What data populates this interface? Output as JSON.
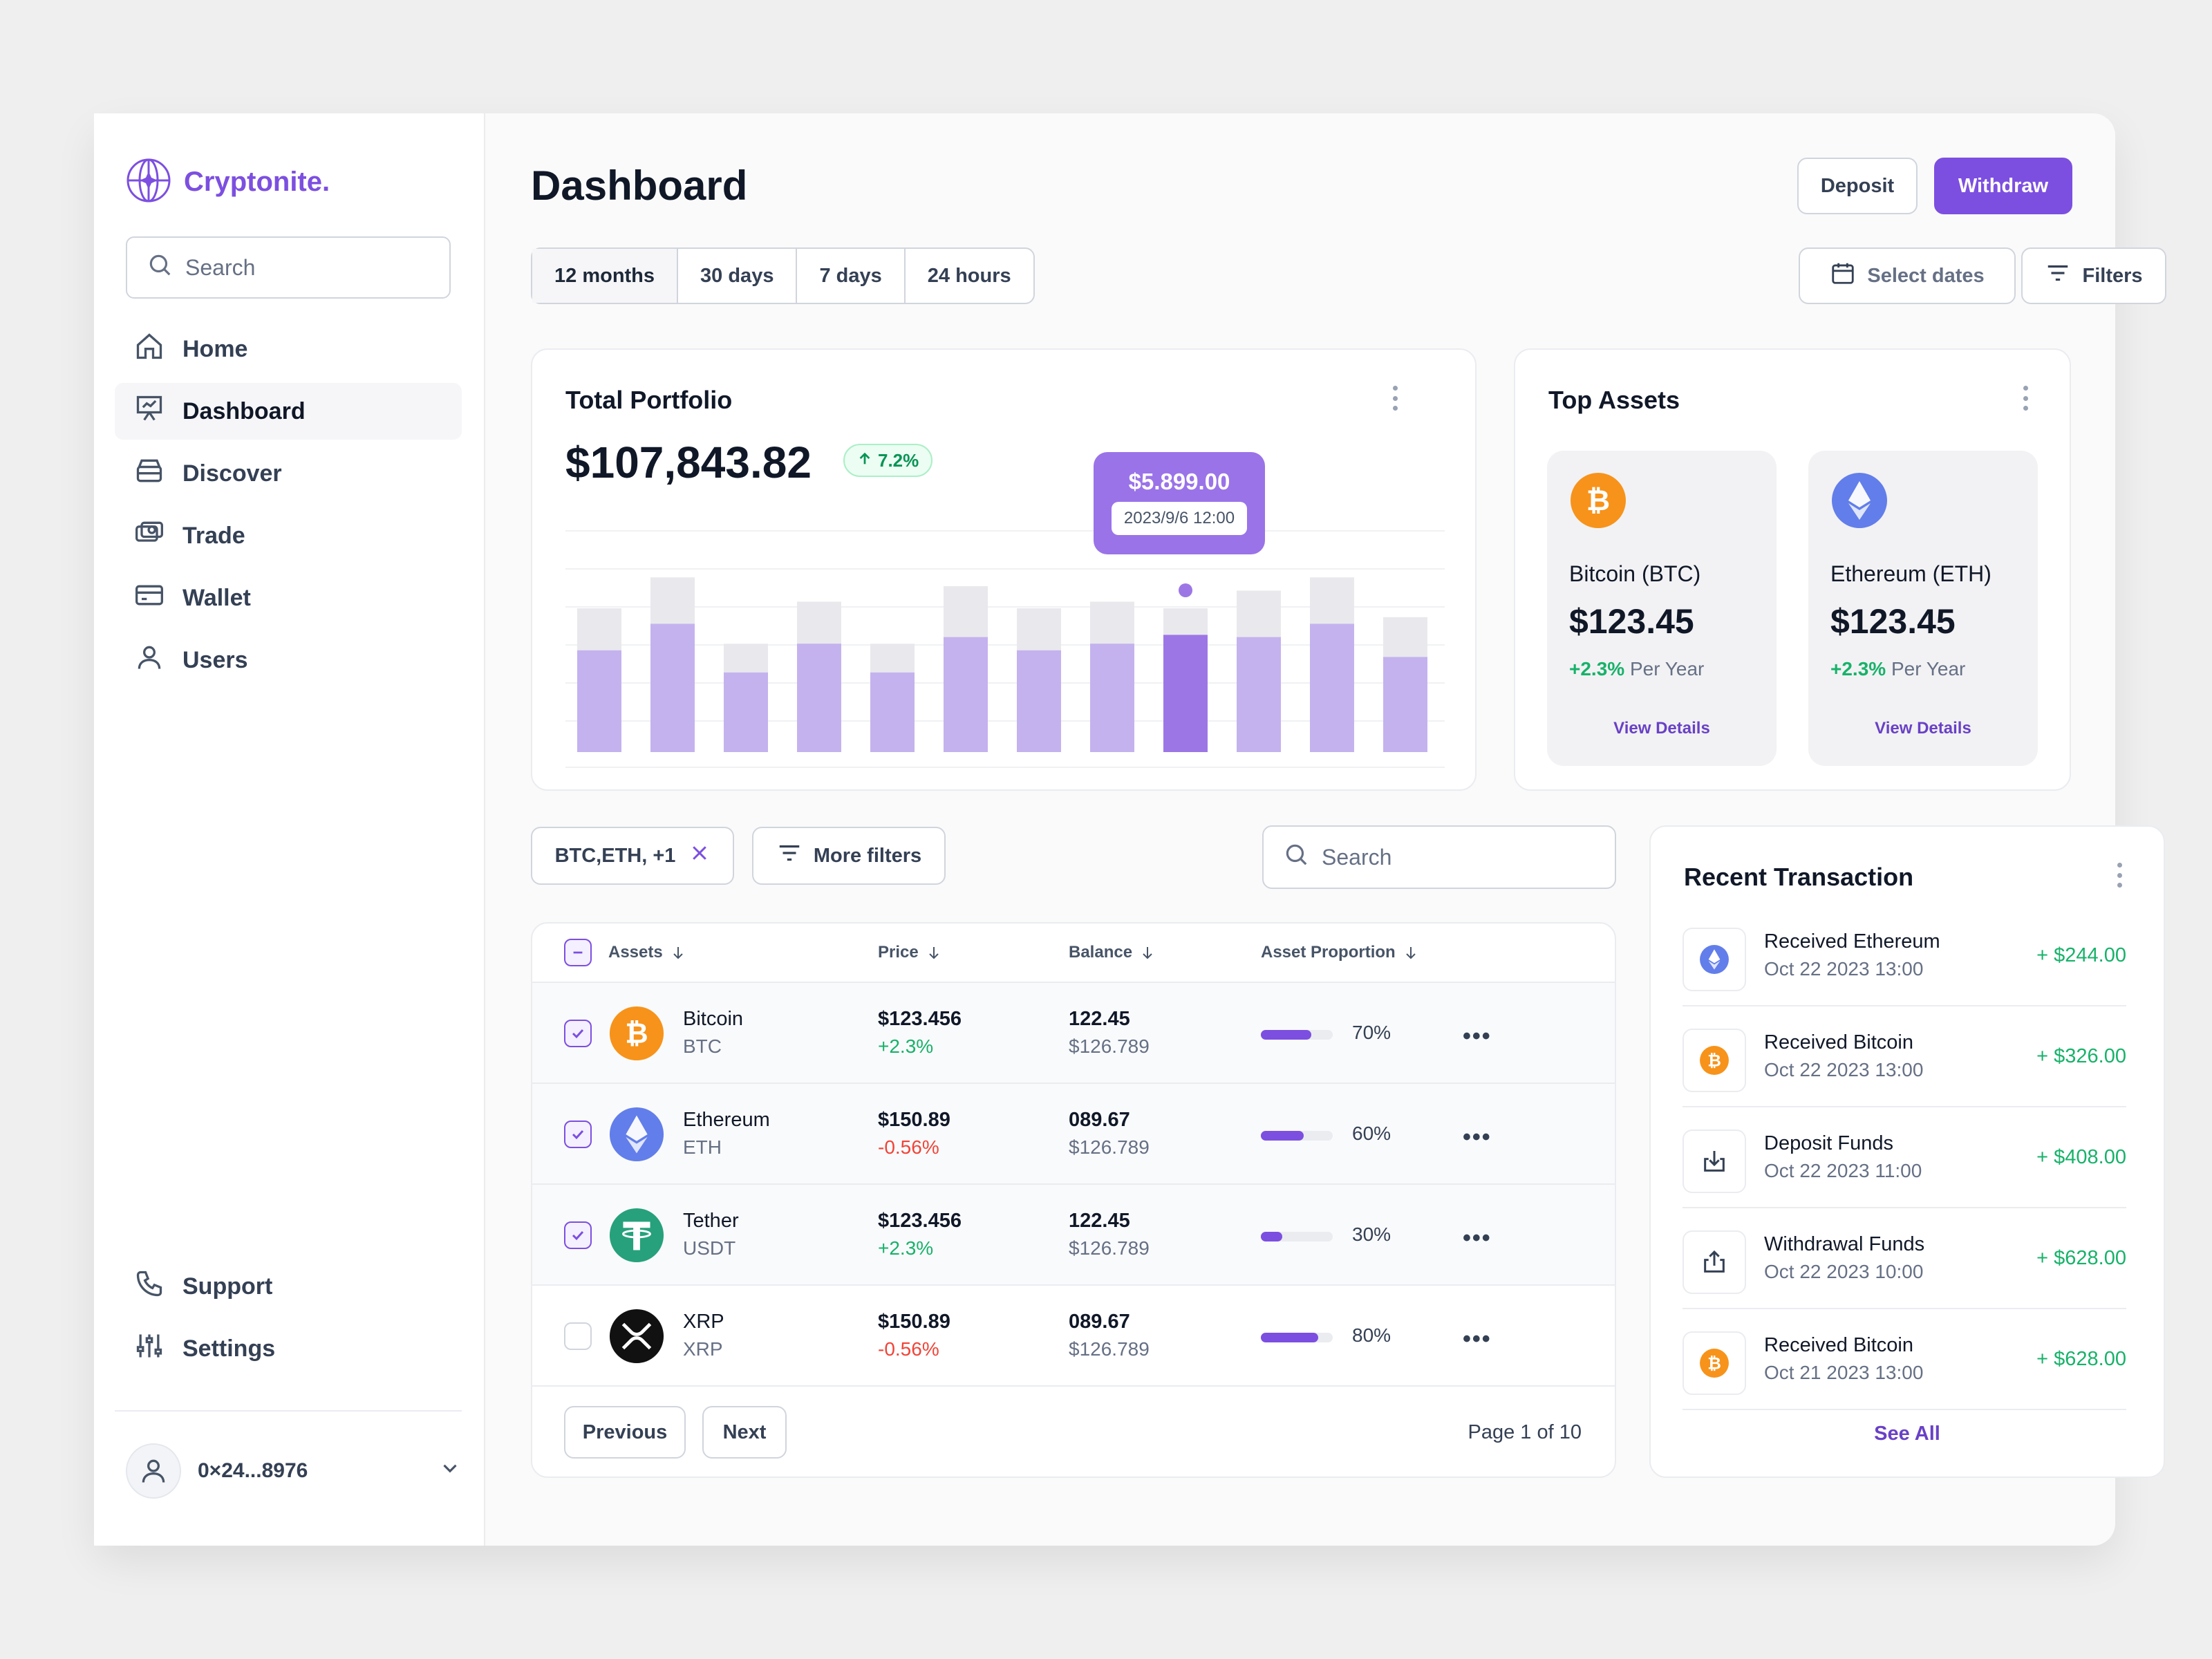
{
  "app": {
    "logo_text": "Cryptonite."
  },
  "sidebar": {
    "search_placeholder": "Search",
    "items": [
      {
        "label": "Home",
        "icon": "home-icon"
      },
      {
        "label": "Dashboard",
        "icon": "presentation-icon",
        "active": true
      },
      {
        "label": "Discover",
        "icon": "archive-icon"
      },
      {
        "label": "Trade",
        "icon": "cash-icon"
      },
      {
        "label": "Wallet",
        "icon": "credit-card-icon"
      },
      {
        "label": "Users",
        "icon": "user-icon"
      }
    ],
    "bottom": [
      {
        "label": "Support",
        "icon": "phone-icon"
      },
      {
        "label": "Settings",
        "icon": "sliders-icon"
      }
    ],
    "account": "0×24...8976"
  },
  "header": {
    "title": "Dashboard",
    "deposit_label": "Deposit",
    "withdraw_label": "Withdraw",
    "ranges": [
      "12 months",
      "30 days",
      "7 days",
      "24 hours"
    ],
    "active_range": "12 months",
    "select_dates_label": "Select dates",
    "filters_label": "Filters"
  },
  "portfolio": {
    "title": "Total Portfolio",
    "value": "$107,843.82",
    "change": "7.2%",
    "tooltip_value": "$5.899.00",
    "tooltip_date": "2023/9/6 12:00",
    "highlight_index": 8
  },
  "chart_data": {
    "type": "bar",
    "series": [
      {
        "values": [
          46,
          58,
          36,
          49,
          36,
          52,
          46,
          49,
          53,
          52,
          58,
          43
        ]
      },
      {
        "values": [
          65,
          79,
          49,
          68,
          49,
          75,
          65,
          68,
          65,
          73,
          79,
          61
        ]
      }
    ],
    "colors": {
      "fill": "#c4b2ee",
      "highlight": "#9d76e6",
      "background_bar": "#e9e9ed"
    }
  },
  "top_assets": {
    "title": "Top Assets",
    "items": [
      {
        "name": "Bitcoin (BTC)",
        "price": "$123.45",
        "change": "+2.3%",
        "change_suffix": "Per Year",
        "link": "View Details",
        "icon": "bitcoin-icon",
        "color": "#f7931a"
      },
      {
        "name": "Ethereum (ETH)",
        "price": "$123.45",
        "change": "+2.3%",
        "change_suffix": "Per Year",
        "link": "View Details",
        "icon": "ethereum-icon",
        "color": "#627eea"
      }
    ]
  },
  "table": {
    "filter_chip": "BTC,ETH, +1",
    "more_filters_label": "More filters",
    "search_placeholder": "Search",
    "headers": [
      "Assets",
      "Price",
      "Balance",
      "Asset Proportion"
    ],
    "rows": [
      {
        "name": "Bitcoin",
        "symbol": "BTC",
        "price": "$123.456",
        "change": "+2.3%",
        "dir": "pos",
        "balance": "122.45",
        "balance_usd": "$126.789",
        "proportion": 70,
        "proportion_label": "70%",
        "checked": true,
        "icon": "bitcoin-icon"
      },
      {
        "name": "Ethereum",
        "symbol": "ETH",
        "price": "$150.89",
        "change": "-0.56%",
        "dir": "neg",
        "balance": "089.67",
        "balance_usd": "$126.789",
        "proportion": 60,
        "proportion_label": "60%",
        "checked": true,
        "icon": "ethereum-icon"
      },
      {
        "name": "Tether",
        "symbol": "USDT",
        "price": "$123.456",
        "change": "+2.3%",
        "dir": "pos",
        "balance": "122.45",
        "balance_usd": "$126.789",
        "proportion": 30,
        "proportion_label": "30%",
        "checked": true,
        "icon": "tether-icon"
      },
      {
        "name": "XRP",
        "symbol": "XRP",
        "price": "$150.89",
        "change": "-0.56%",
        "dir": "neg",
        "balance": "089.67",
        "balance_usd": "$126.789",
        "proportion": 80,
        "proportion_label": "80%",
        "checked": false,
        "icon": "xrp-icon"
      }
    ],
    "previous_label": "Previous",
    "next_label": "Next",
    "page_info": "Page 1 of 10"
  },
  "recent": {
    "title": "Recent Transaction",
    "items": [
      {
        "title": "Received Ethereum",
        "date": "Oct 22 2023 13:00",
        "amount": "+ $244.00",
        "icon": "ethereum-icon"
      },
      {
        "title": "Received Bitcoin",
        "date": "Oct 22 2023 13:00",
        "amount": "+ $326.00",
        "icon": "bitcoin-icon"
      },
      {
        "title": "Deposit Funds",
        "date": "Oct 22 2023 11:00",
        "amount": "+ $408.00",
        "icon": "download-icon"
      },
      {
        "title": "Withdrawal Funds",
        "date": "Oct 22 2023 10:00",
        "amount": "+ $628.00",
        "icon": "upload-icon"
      },
      {
        "title": "Received Bitcoin",
        "date": "Oct 21 2023 13:00",
        "amount": "+ $628.00",
        "icon": "bitcoin-icon"
      }
    ],
    "see_all": "See All"
  }
}
